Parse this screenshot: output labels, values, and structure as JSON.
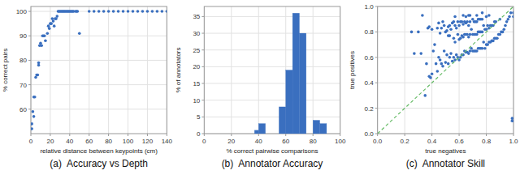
{
  "chart_data": [
    {
      "type": "scatter",
      "title": "(a)  Accuracy vs Depth",
      "xlabel": "relative distance between keypoints (cm)",
      "ylabel": "% correct pairs",
      "x": [
        1,
        1,
        2,
        3,
        3,
        4,
        5,
        6,
        7,
        8,
        8,
        9,
        10,
        11,
        12,
        13,
        14,
        15,
        17,
        18,
        19,
        20,
        21,
        22,
        23,
        24,
        25,
        26,
        27,
        28,
        29,
        30,
        31,
        32,
        33,
        34,
        35,
        36,
        37,
        38,
        39,
        40,
        41,
        42,
        43,
        44,
        46,
        47,
        48,
        50,
        60,
        65,
        70,
        75,
        80,
        85,
        90,
        95,
        100,
        105,
        110,
        115,
        120,
        125,
        130,
        135,
        140
      ],
      "values": [
        54,
        52,
        59,
        57,
        65,
        65,
        73,
        74,
        74,
        78,
        79,
        86,
        87,
        86,
        90,
        90,
        90,
        88,
        91,
        94,
        93,
        95,
        95,
        97,
        96,
        94,
        97,
        97,
        98,
        100,
        100,
        100,
        100,
        100,
        100,
        100,
        100,
        100,
        100,
        100,
        100,
        100,
        100,
        100,
        100,
        100,
        100,
        100,
        100,
        91,
        100,
        100,
        100,
        100,
        100,
        100,
        100,
        100,
        100,
        100,
        100,
        100,
        100,
        100,
        100,
        100,
        100
      ],
      "color": "#3a6fbf",
      "xlim": [
        0,
        140
      ],
      "ylim": [
        50,
        102
      ],
      "xticks": [
        0,
        20,
        40,
        60,
        80,
        100,
        120,
        140
      ],
      "yticks": [
        60,
        70,
        80,
        90,
        100
      ],
      "grid": true
    },
    {
      "type": "histogram",
      "title": "(b)  Annotator Accuracy",
      "xlabel": "% correct pairwise comparisons",
      "ylabel": "% of annotators",
      "bins": [
        0,
        10,
        20,
        30,
        37,
        40,
        45,
        50,
        55,
        60,
        65,
        70,
        75,
        80,
        85,
        90,
        95,
        100
      ],
      "values": [
        0,
        0,
        0,
        0,
        1,
        3,
        0,
        0,
        8,
        19,
        36,
        30,
        0,
        4,
        3,
        0,
        0
      ],
      "color": "#3a6fbf",
      "xlim": [
        0,
        100
      ],
      "ylim": [
        0,
        38
      ],
      "xticks": [
        0,
        20,
        40,
        60,
        80,
        100
      ],
      "yticks": [
        0,
        5,
        10,
        15,
        20,
        25,
        30,
        35
      ],
      "grid": true
    },
    {
      "type": "scatter",
      "title": "(c)  Annotator Skill",
      "xlabel": "true negatives",
      "ylabel": "true positives",
      "series": [
        {
          "color": "#3a6fbf",
          "x": [
            0.25,
            0.27,
            0.3,
            0.32,
            0.33,
            0.35,
            0.36,
            0.37,
            0.38,
            0.38,
            0.39,
            0.4,
            0.4,
            0.41,
            0.42,
            0.43,
            0.44,
            0.44,
            0.45,
            0.45,
            0.46,
            0.46,
            0.47,
            0.47,
            0.48,
            0.48,
            0.49,
            0.49,
            0.5,
            0.5,
            0.51,
            0.51,
            0.52,
            0.52,
            0.52,
            0.53,
            0.53,
            0.53,
            0.54,
            0.54,
            0.55,
            0.55,
            0.56,
            0.56,
            0.56,
            0.57,
            0.57,
            0.57,
            0.57,
            0.58,
            0.58,
            0.59,
            0.59,
            0.59,
            0.6,
            0.6,
            0.6,
            0.61,
            0.61,
            0.61,
            0.62,
            0.62,
            0.62,
            0.63,
            0.63,
            0.63,
            0.63,
            0.64,
            0.64,
            0.64,
            0.65,
            0.65,
            0.65,
            0.65,
            0.66,
            0.66,
            0.66,
            0.67,
            0.67,
            0.67,
            0.67,
            0.68,
            0.68,
            0.68,
            0.68,
            0.69,
            0.69,
            0.7,
            0.7,
            0.7,
            0.71,
            0.71,
            0.71,
            0.72,
            0.72,
            0.72,
            0.73,
            0.73,
            0.73,
            0.73,
            0.74,
            0.74,
            0.74,
            0.75,
            0.75,
            0.75,
            0.76,
            0.76,
            0.76,
            0.77,
            0.77,
            0.77,
            0.77,
            0.78,
            0.78,
            0.79,
            0.79,
            0.8,
            0.8,
            0.8,
            0.81,
            0.81,
            0.82,
            0.82,
            0.82,
            0.83,
            0.83,
            0.84,
            0.84,
            0.85,
            0.85,
            0.86,
            0.86,
            0.87,
            0.87,
            0.88,
            0.89,
            0.9,
            0.9,
            0.91,
            0.92,
            0.93,
            0.94,
            0.95,
            0.96,
            0.97,
            0.98,
            0.99,
            0.99,
            1.0,
            1.0
          ],
          "values": [
            0.8,
            0.63,
            0.8,
            0.63,
            0.93,
            0.3,
            0.55,
            0.83,
            0.45,
            0.84,
            0.44,
            0.47,
            0.82,
            0.65,
            0.7,
            0.55,
            0.49,
            0.83,
            0.6,
            0.87,
            0.58,
            0.79,
            0.55,
            0.83,
            0.53,
            0.88,
            0.65,
            0.85,
            0.56,
            0.8,
            0.62,
            0.81,
            0.55,
            0.77,
            0.84,
            0.6,
            0.77,
            0.85,
            0.63,
            0.82,
            0.57,
            0.87,
            0.6,
            0.75,
            0.88,
            0.58,
            0.72,
            0.85,
            0.92,
            0.62,
            0.83,
            0.6,
            0.78,
            0.88,
            0.58,
            0.74,
            0.85,
            0.6,
            0.75,
            0.88,
            0.62,
            0.77,
            0.88,
            0.62,
            0.76,
            0.86,
            0.93,
            0.65,
            0.78,
            0.88,
            0.64,
            0.78,
            0.87,
            0.92,
            0.64,
            0.78,
            0.88,
            0.63,
            0.76,
            0.85,
            0.93,
            0.65,
            0.78,
            0.88,
            0.93,
            0.67,
            0.82,
            0.65,
            0.78,
            0.9,
            0.65,
            0.78,
            0.88,
            0.65,
            0.78,
            0.88,
            0.65,
            0.78,
            0.88,
            0.93,
            0.67,
            0.8,
            0.9,
            0.67,
            0.8,
            0.9,
            0.67,
            0.8,
            0.9,
            0.67,
            0.8,
            0.9,
            0.95,
            0.72,
            0.85,
            0.67,
            0.82,
            0.7,
            0.82,
            0.92,
            0.7,
            0.85,
            0.72,
            0.83,
            0.93,
            0.72,
            0.85,
            0.73,
            0.85,
            0.73,
            0.85,
            0.75,
            0.88,
            0.75,
            0.88,
            0.75,
            0.78,
            0.78,
            0.9,
            0.8,
            0.8,
            0.82,
            0.85,
            0.88,
            0.9,
            0.92,
            0.95,
            0.12,
            0.1,
            0.92,
            0.95
          ]
        },
        {
          "type": "line",
          "color": "#66bb66",
          "line_style": "dashed",
          "x": [
            0,
            1
          ],
          "values": [
            0,
            1
          ]
        }
      ],
      "xlim": [
        0,
        1
      ],
      "ylim": [
        0,
        1
      ],
      "xticks": [
        {
          "value": 0,
          "label": "0.0"
        },
        0.2,
        0.4,
        0.6,
        0.8,
        {
          "value": 1,
          "label": "1.0"
        }
      ],
      "yticks": [
        {
          "value": 0,
          "label": "0.0"
        },
        0.2,
        0.4,
        0.6,
        0.8,
        {
          "value": 1,
          "label": "1.0"
        }
      ],
      "grid": true
    }
  ]
}
